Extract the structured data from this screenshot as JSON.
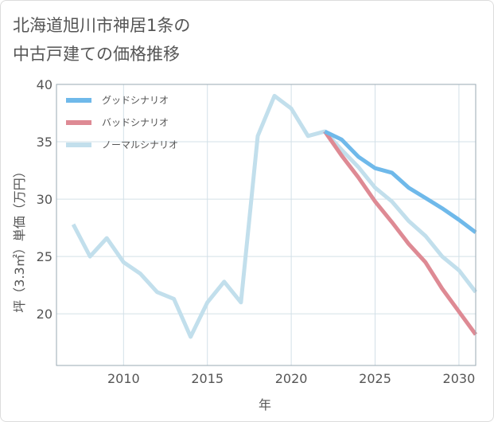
{
  "title_lines": [
    "北海道旭川市神居1条の",
    "中古戸建ての価格推移"
  ],
  "chart_data": {
    "type": "line",
    "xlabel": "年",
    "ylabel": "坪（3.3㎡）単価（万円）",
    "xlim": [
      2006,
      2031
    ],
    "ylim": [
      15.5,
      40
    ],
    "xticks": [
      2010,
      2015,
      2020,
      2025,
      2030
    ],
    "yticks": [
      20,
      25,
      30,
      35,
      40
    ],
    "grid": true,
    "legend_position": "top-left",
    "series": [
      {
        "name": "グッドシナリオ",
        "color": "#6fb9ea",
        "x": [
          2022,
          2023,
          2024,
          2025,
          2026,
          2027,
          2028,
          2029,
          2030,
          2031
        ],
        "y": [
          35.9,
          35.2,
          33.7,
          32.7,
          32.3,
          31.0,
          30.1,
          29.2,
          28.2,
          27.1
        ]
      },
      {
        "name": "バッドシナリオ",
        "color": "#de8a94",
        "x": [
          2022,
          2023,
          2024,
          2025,
          2026,
          2027,
          2028,
          2029,
          2030,
          2031
        ],
        "y": [
          35.9,
          33.8,
          31.9,
          29.8,
          28.0,
          26.1,
          24.5,
          22.2,
          20.2,
          18.2
        ]
      },
      {
        "name": "ノーマルシナリオ",
        "color": "#c2dfec",
        "x": [
          2007,
          2008,
          2009,
          2010,
          2011,
          2012,
          2013,
          2014,
          2015,
          2016,
          2017,
          2018,
          2019,
          2020,
          2021,
          2022,
          2023,
          2024,
          2025,
          2026,
          2027,
          2028,
          2029,
          2030,
          2031
        ],
        "y": [
          27.8,
          25.0,
          26.6,
          24.5,
          23.5,
          21.9,
          21.3,
          18.0,
          21.0,
          22.8,
          21.0,
          35.5,
          39.0,
          37.9,
          35.5,
          35.9,
          34.3,
          32.8,
          31.0,
          29.8,
          28.1,
          26.8,
          25.0,
          23.8,
          21.9
        ]
      }
    ]
  }
}
